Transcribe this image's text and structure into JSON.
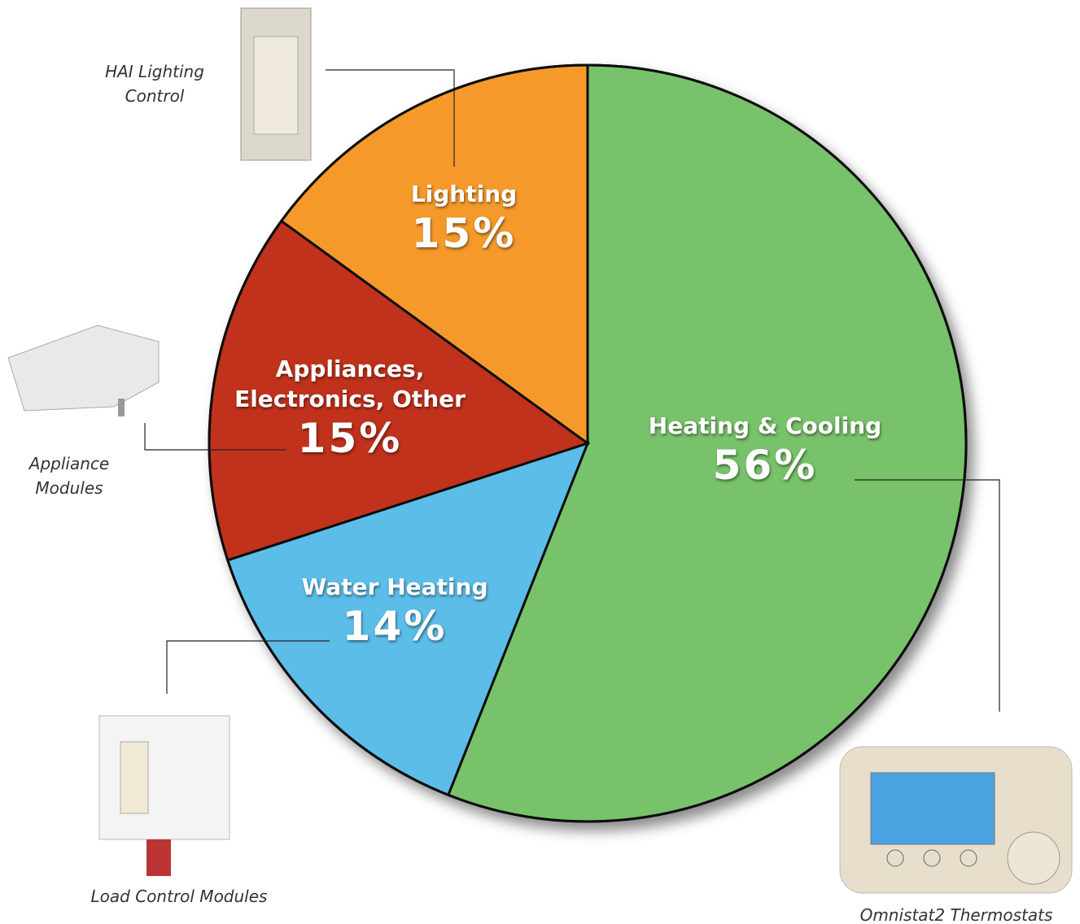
{
  "chart_data": {
    "type": "pie",
    "categories": [
      "Heating & Cooling",
      "Water Heating",
      "Appliances, Electronics, Other",
      "Lighting"
    ],
    "values": [
      56,
      14,
      15,
      15
    ],
    "value_labels": [
      "56%",
      "14%",
      "15%",
      "15%"
    ],
    "colors": [
      "#77c26b",
      "#5bbde9",
      "#c0311c",
      "#f59a2c"
    ],
    "annotations": [
      "HAI Lighting Control",
      "Appliance Modules",
      "Load Control Modules",
      "Omnistat2 Thermostats"
    ]
  }
}
